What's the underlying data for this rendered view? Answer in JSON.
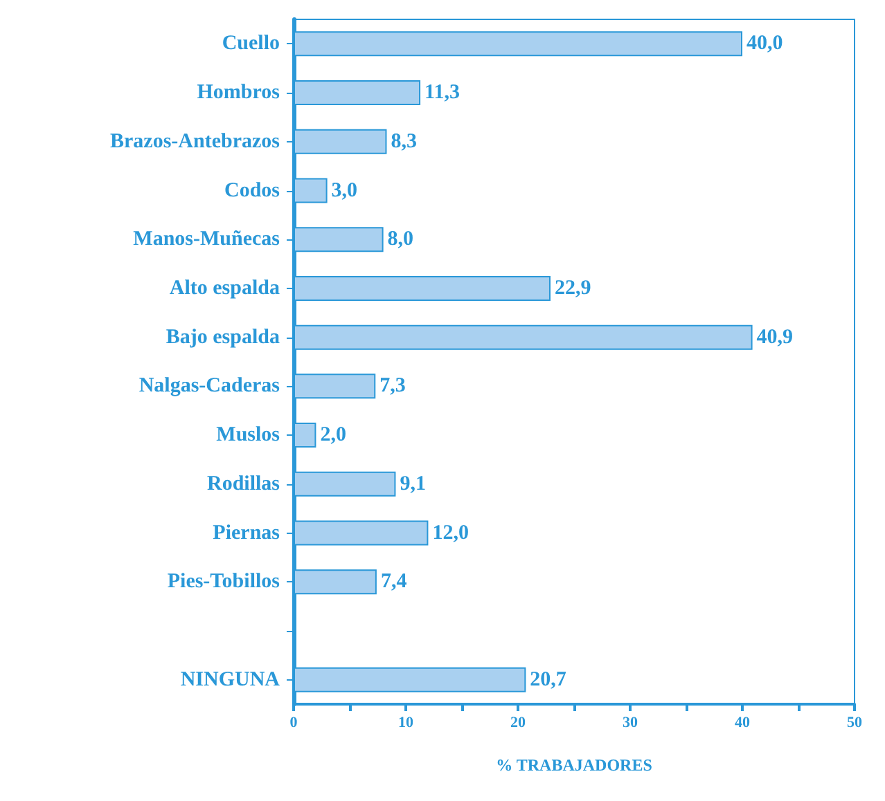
{
  "chart_data": {
    "type": "bar",
    "orientation": "horizontal",
    "xlabel": "% TRABAJADORES",
    "categories": [
      "Cuello",
      "Hombros",
      "Brazos-Antebrazos",
      "Codos",
      "Manos-Muñecas",
      "Alto espalda",
      "Bajo espalda",
      "Nalgas-Caderas",
      "Muslos",
      "Rodillas",
      "Piernas",
      "Pies-Tobillos",
      null,
      "NINGUNA"
    ],
    "values": [
      40.0,
      11.3,
      8.3,
      3.0,
      8.0,
      22.9,
      40.9,
      7.3,
      2.0,
      9.1,
      12.0,
      7.4,
      null,
      20.7
    ],
    "value_labels": [
      "40,0",
      "11,3",
      "8,3",
      "3,0",
      "8,0",
      "22,9",
      "40,9",
      "7,3",
      "2,0",
      "9,1",
      "12,0",
      "7,4",
      null,
      "20,7"
    ],
    "color": "#a9d0f0",
    "xlim": [
      0,
      50
    ],
    "xticks": [
      0,
      {
        "value": 5,
        "label": null
      },
      10,
      {
        "value": 15,
        "label": null
      },
      20,
      {
        "value": 25,
        "label": null
      },
      30,
      {
        "value": 35,
        "label": null
      },
      40,
      {
        "value": 45,
        "label": null
      },
      50
    ]
  }
}
